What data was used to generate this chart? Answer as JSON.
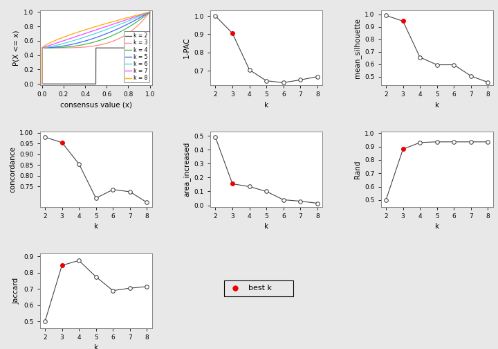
{
  "k_values": [
    2,
    3,
    4,
    5,
    6,
    7,
    8
  ],
  "best_k": 3,
  "pac_1minus": [
    1.0,
    0.905,
    0.705,
    0.645,
    0.635,
    0.65,
    0.668
  ],
  "mean_silhouette": [
    0.99,
    0.945,
    0.655,
    0.595,
    0.595,
    0.505,
    0.455
  ],
  "concordance": [
    0.98,
    0.955,
    0.855,
    0.695,
    0.735,
    0.725,
    0.675
  ],
  "area_increased": [
    0.49,
    0.155,
    0.135,
    0.1,
    0.04,
    0.03,
    0.015
  ],
  "rand": [
    0.5,
    0.88,
    0.93,
    0.935,
    0.935,
    0.935,
    0.935
  ],
  "jaccard": [
    0.5,
    0.845,
    0.875,
    0.775,
    0.69,
    0.705,
    0.715
  ],
  "line_colors": [
    "#555555",
    "#FF8888",
    "#44BB44",
    "#4466FF",
    "#44DDDD",
    "#FF44FF",
    "#FFAA00"
  ],
  "line_labels": [
    "k = 2",
    "k = 3",
    "k = 4",
    "k = 5",
    "k = 6",
    "k = 7",
    "k = 8"
  ],
  "bg_color": "#E8E8E8",
  "plot_bg": "#FFFFFF",
  "open_circle_color": "#FFFFFF",
  "open_circle_edge": "#333333",
  "best_k_color": "#EE0000",
  "axis_label_fontsize": 7.5,
  "tick_fontsize": 6.5
}
